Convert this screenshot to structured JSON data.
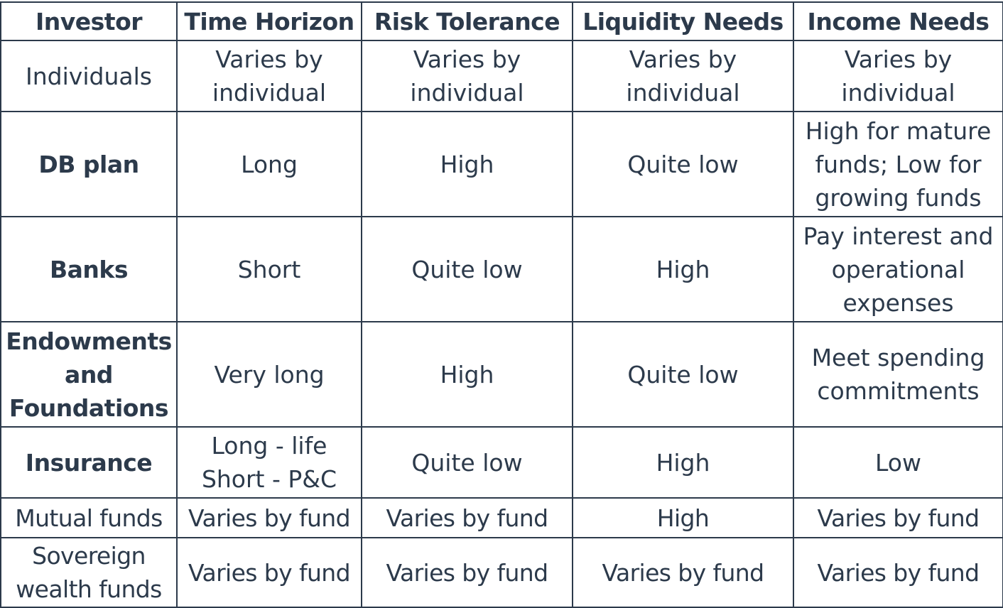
{
  "table": {
    "headers": [
      "Investor",
      "Time Horizon",
      "Risk Tolerance",
      "Liquidity Needs",
      "Income Needs"
    ],
    "rows": [
      {
        "investor": "Individuals",
        "investor_bold": false,
        "time_horizon": [
          "Varies by",
          "individual"
        ],
        "risk_tolerance": [
          "Varies by",
          "individual"
        ],
        "liquidity_needs": [
          "Varies by",
          "individual"
        ],
        "income_needs": [
          "Varies by",
          "individual"
        ]
      },
      {
        "investor": "DB plan",
        "investor_bold": true,
        "time_horizon": [
          "Long"
        ],
        "risk_tolerance": [
          "High"
        ],
        "liquidity_needs": [
          "Quite low"
        ],
        "income_needs": [
          "High for mature",
          "funds; Low for",
          "growing funds"
        ]
      },
      {
        "investor": "Banks",
        "investor_bold": true,
        "time_horizon": [
          "Short"
        ],
        "risk_tolerance": [
          "Quite low"
        ],
        "liquidity_needs": [
          "High"
        ],
        "income_needs": [
          "Pay interest and",
          "operational",
          "expenses"
        ]
      },
      {
        "investor_lines": [
          "Endowments",
          "and",
          "Foundations"
        ],
        "investor_bold": true,
        "time_horizon": [
          "Very long"
        ],
        "risk_tolerance": [
          "High"
        ],
        "liquidity_needs": [
          "Quite low"
        ],
        "income_needs": [
          "Meet spending",
          "commitments"
        ]
      },
      {
        "investor": "Insurance",
        "investor_bold": true,
        "time_horizon": [
          "Long - life",
          "Short - P&C"
        ],
        "risk_tolerance": [
          "Quite low"
        ],
        "liquidity_needs": [
          "High"
        ],
        "income_needs": [
          "Low"
        ]
      },
      {
        "investor": "Mutual funds",
        "investor_bold": false,
        "time_horizon": [
          "Varies by fund"
        ],
        "risk_tolerance": [
          "Varies by fund"
        ],
        "liquidity_needs": [
          "High"
        ],
        "income_needs": [
          "Varies by fund"
        ]
      },
      {
        "investor_lines": [
          "Sovereign",
          "wealth funds"
        ],
        "investor_bold": false,
        "time_horizon": [
          "Varies by fund"
        ],
        "risk_tolerance": [
          "Varies by fund"
        ],
        "liquidity_needs": [
          "Varies by fund"
        ],
        "income_needs": [
          "Varies by fund"
        ]
      }
    ]
  }
}
